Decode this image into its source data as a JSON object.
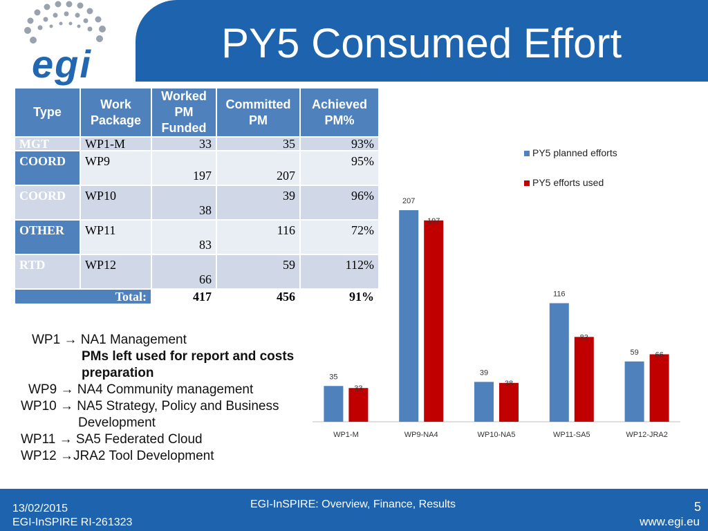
{
  "slide": {
    "title": "PY5 Consumed Effort",
    "logo_text": "egi"
  },
  "table": {
    "headers": [
      "Type",
      "Work Package",
      "Worked PM Funded",
      "Committed PM",
      "Achieved PM%"
    ],
    "rows": [
      {
        "type": "MGT",
        "wp": "WP1-M",
        "funded": "33",
        "committed": "35",
        "achieved": "93%"
      },
      {
        "type": "COORD",
        "wp": "WP9",
        "funded": "197",
        "committed": "207",
        "achieved": "95%"
      },
      {
        "type": "COORD",
        "wp": "WP10",
        "funded": "38",
        "committed": "39",
        "achieved": "96%"
      },
      {
        "type": "OTHER",
        "wp": "WP11",
        "funded": "83",
        "committed": "116",
        "achieved": "72%"
      },
      {
        "type": "RTD",
        "wp": "WP12",
        "funded": "66",
        "committed": "59",
        "achieved": "112%"
      }
    ],
    "total": {
      "label": "Total:",
      "funded": "417",
      "committed": "456",
      "achieved": "91%"
    }
  },
  "notes": {
    "l1": "WP1 → NA1 Management",
    "l2": "PMs left used for report and costs",
    "l3": "preparation",
    "l4": "WP9 → NA4 Community management",
    "l5": "WP10 → NA5 Strategy, Policy and Business",
    "l6": "Development",
    "l7": "WP11 → SA5 Federated Cloud",
    "l8": "WP12 →JRA2 Tool Development"
  },
  "chart_data": {
    "type": "bar",
    "categories": [
      "WP1-M",
      "WP9-NA4",
      "WP10-NA5",
      "WP11-SA5",
      "WP12-JRA2"
    ],
    "series": [
      {
        "name": "PY5 planned efforts",
        "values": [
          35,
          207,
          39,
          116,
          59
        ],
        "color": "#4f81bd"
      },
      {
        "name": "PY5 efforts used",
        "values": [
          33,
          197,
          38,
          83,
          66
        ],
        "color": "#c00000"
      }
    ],
    "title": "",
    "xlabel": "",
    "ylabel": "",
    "ylim": [
      0,
      207
    ],
    "legend": "right",
    "grid": false,
    "data_labels": true
  },
  "footer": {
    "date": "13/02/2015",
    "project": "EGI-InSPIRE RI-261323",
    "center": "EGI-InSPIRE: Overview, Finance, Results",
    "page": "5",
    "url": "www.egi.eu"
  }
}
